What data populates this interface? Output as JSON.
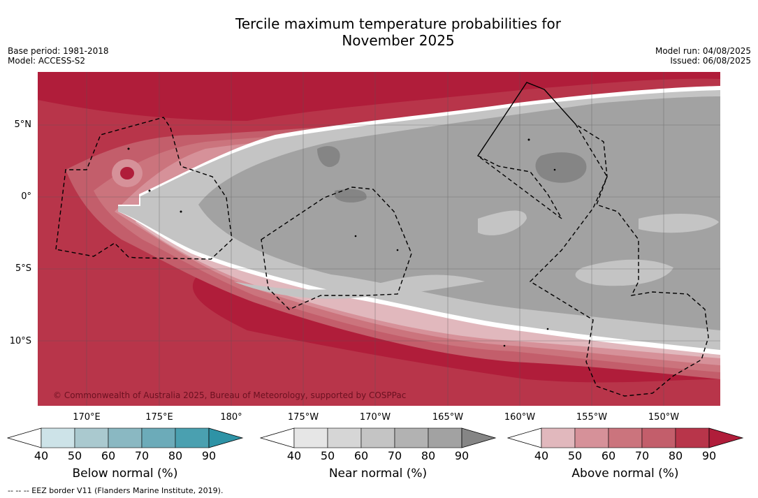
{
  "header": {
    "title_line1": "Tercile maximum temperature probabilities for",
    "title_line2": "November 2025",
    "base_period": "Base period: 1981-2018",
    "model": "Model: ACCESS-S2",
    "model_run": "Model run: 04/08/2025",
    "issued": "Issued: 06/08/2025"
  },
  "map": {
    "lat_labels": [
      "5°N",
      "0°",
      "5°S",
      "10°S"
    ],
    "lon_labels": [
      "170°E",
      "175°E",
      "180°",
      "175°W",
      "170°W",
      "165°W",
      "160°W",
      "155°W",
      "150°W"
    ],
    "copyright": "© Commonwealth of Australia 2025, Bureau of Meteorology, supported by COSPPac"
  },
  "legend": {
    "below": {
      "label": "Below normal (%)",
      "ticks": [
        "40",
        "50",
        "60",
        "70",
        "80",
        "90"
      ],
      "colors": [
        "#cde3e8",
        "#aac9cf",
        "#8ab8c2",
        "#6cabb9",
        "#4aa0b0",
        "#2e93a6"
      ]
    },
    "near": {
      "label": "Near normal (%)",
      "ticks": [
        "40",
        "50",
        "60",
        "70",
        "80",
        "90"
      ],
      "colors": [
        "#e6e6e6",
        "#d6d6d6",
        "#c4c4c4",
        "#b2b2b2",
        "#a2a2a2",
        "#858585"
      ]
    },
    "above": {
      "label": "Above normal (%)",
      "ticks": [
        "40",
        "50",
        "60",
        "70",
        "80",
        "90"
      ],
      "colors": [
        "#e1b8bd",
        "#d69199",
        "#cb747d",
        "#c35e6b",
        "#b8354a",
        "#b01d3a"
      ]
    }
  },
  "footnote": "-- -- -- EEZ border V11 (Flanders Marine Institute, 2019)."
}
